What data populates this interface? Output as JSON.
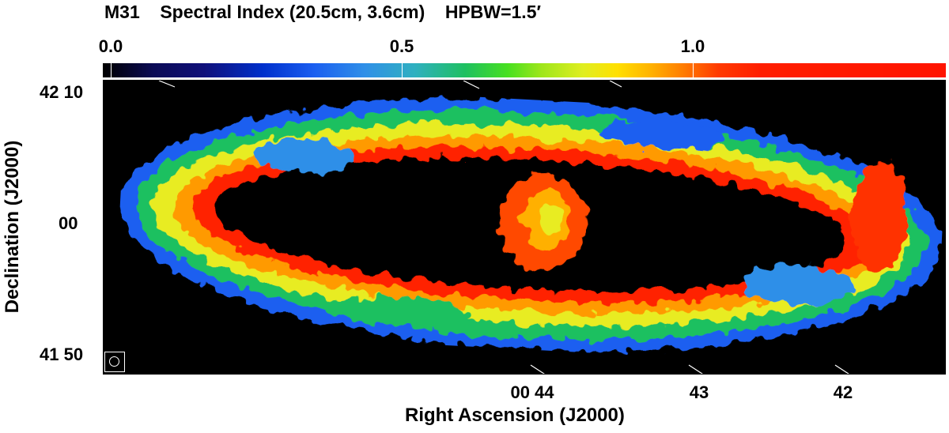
{
  "header": {
    "object": "M31",
    "quantity": "Spectral Index (20.5cm, 3.6cm)",
    "beam": "HPBW=1.5′"
  },
  "colorbar": {
    "ticks": [
      {
        "label": "0.0",
        "value": 0.0
      },
      {
        "label": "0.5",
        "value": 0.5
      },
      {
        "label": "1.0",
        "value": 1.0
      }
    ],
    "colors": {
      "low": "#000000",
      "mid_blue": "#1b5ef0",
      "mid_green": "#47e020",
      "mid_yellow": "#ffe000",
      "high": "#ff1400"
    }
  },
  "axes": {
    "x_label": "Right Ascension (J2000)",
    "y_label": "Declination (J2000)",
    "x_ticks": [
      "00 44",
      "43",
      "42"
    ],
    "y_ticks": [
      "42 10",
      "00",
      "41 50"
    ]
  },
  "beam_icon": "beam-circle-icon",
  "image_colors": {
    "background": "#000000",
    "outer_ring": "#2f8fe8",
    "ring_green": "#1ec060",
    "ring_yellow": "#ffe000",
    "ring_red": "#ff2000",
    "center": "#ff7a00"
  }
}
